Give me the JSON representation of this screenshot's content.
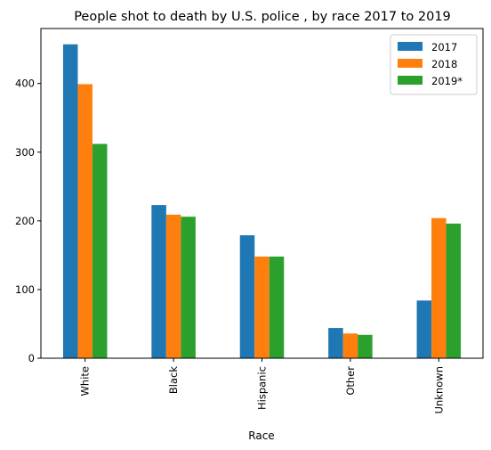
{
  "chart_data": {
    "type": "bar",
    "title": "People shot to death by U.S. police , by race 2017 to 2019",
    "xlabel": "Race",
    "ylabel": "",
    "categories": [
      "White",
      "Black",
      "Hispanic",
      "Other",
      "Unknown"
    ],
    "series": [
      {
        "name": "2017",
        "color": "#1f77b4",
        "values": [
          457,
          223,
          179,
          44,
          84
        ]
      },
      {
        "name": "2018",
        "color": "#ff7f0e",
        "values": [
          399,
          209,
          148,
          36,
          204
        ]
      },
      {
        "name": "2019*",
        "color": "#2ca02c",
        "values": [
          312,
          206,
          148,
          34,
          196
        ]
      }
    ],
    "yticks": [
      0,
      100,
      200,
      300,
      400
    ],
    "ylim": [
      0,
      480
    ],
    "grid": false,
    "legend_position": "top-right"
  }
}
